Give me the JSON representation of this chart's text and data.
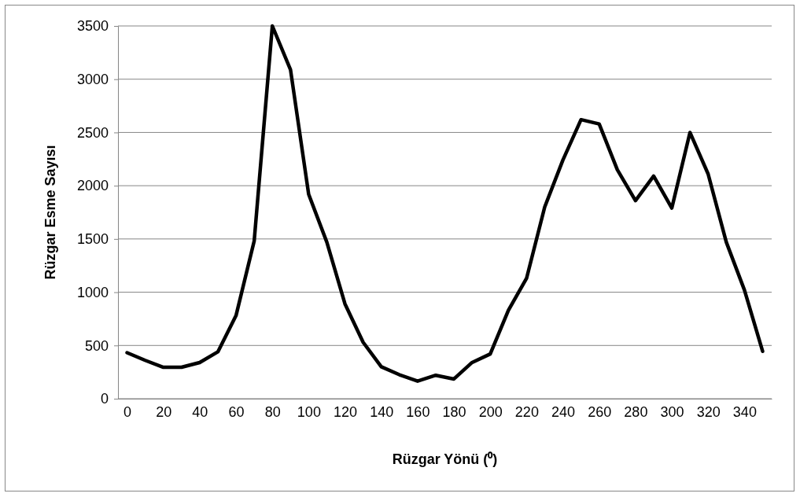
{
  "chart_data": {
    "type": "line",
    "xlabel": "Rüzgar Yönü (⁰)",
    "ylabel": "Rüzgar Esme Sayısı",
    "categories": [
      "0",
      null,
      "20",
      null,
      "40",
      null,
      "60",
      null,
      "80",
      null,
      "100",
      null,
      "120",
      null,
      "140",
      null,
      "160",
      null,
      "180",
      null,
      "200",
      null,
      "220",
      null,
      "240",
      null,
      "260",
      null,
      "280",
      null,
      "300",
      null,
      "320",
      null,
      "340",
      null
    ],
    "series": [
      {
        "color": "#000000",
        "values": [
          432,
          360,
          295,
          295,
          340,
          440,
          780,
          1480,
          3500,
          3090,
          1920,
          1470,
          890,
          530,
          300,
          225,
          165,
          220,
          185,
          340,
          420,
          830,
          1130,
          1800,
          2240,
          2620,
          2580,
          2150,
          1860,
          2090,
          1790,
          2500,
          2110,
          1470,
          1020,
          445
        ]
      }
    ],
    "ylim": [
      0,
      3500
    ],
    "yticks": [
      0,
      500,
      1000,
      1500,
      2000,
      2500,
      3000,
      3500
    ],
    "grid": "y",
    "line_style": "solid",
    "marker": "none"
  }
}
